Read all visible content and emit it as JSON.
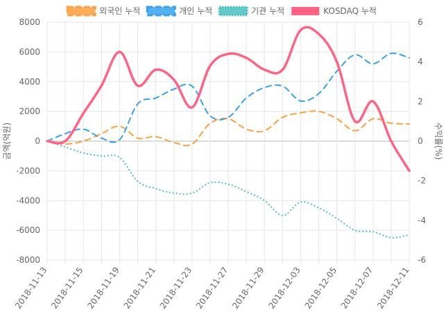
{
  "chart_data": {
    "type": "line",
    "categories": [
      "2018-11-13",
      "2018-11-14",
      "2018-11-15",
      "2018-11-16",
      "2018-11-19",
      "2018-11-20",
      "2018-11-21",
      "2018-11-22",
      "2018-11-23",
      "2018-11-26",
      "2018-11-27",
      "2018-11-28",
      "2018-11-29",
      "2018-11-30",
      "2018-12-03",
      "2018-12-04",
      "2018-12-05",
      "2018-12-06",
      "2018-12-07",
      "2018-12-10",
      "2018-12-11"
    ],
    "x_tick_labels": [
      "2018-11-13",
      "2018-11-15",
      "2018-11-19",
      "2018-11-21",
      "2018-11-23",
      "2018-11-27",
      "2018-11-29",
      "2018-12-03",
      "2018-12-05",
      "2018-12-07",
      "2018-12-11"
    ],
    "series": [
      {
        "name": "외국인 누적",
        "axis": "left",
        "color": "#ff9f40",
        "style": "dashed",
        "values": [
          0,
          -200,
          0,
          500,
          1000,
          200,
          300,
          -100,
          -200,
          1200,
          1500,
          800,
          700,
          1600,
          1900,
          2000,
          1500,
          700,
          1500,
          1200,
          1150
        ]
      },
      {
        "name": "개인 누적",
        "axis": "left",
        "color": "#36a2eb",
        "style": "dashed",
        "values": [
          0,
          500,
          800,
          200,
          100,
          2500,
          2900,
          3500,
          3700,
          1700,
          1600,
          2900,
          3600,
          3700,
          2700,
          3200,
          4700,
          5800,
          5200,
          5900,
          5600
        ]
      },
      {
        "name": "기관 누적",
        "axis": "left",
        "color": "#4bc0c0",
        "style": "dotted",
        "values": [
          0,
          -400,
          -800,
          -1000,
          -1100,
          -2700,
          -3200,
          -3500,
          -3500,
          -2800,
          -2900,
          -3400,
          -4000,
          -5000,
          -4100,
          -4500,
          -5200,
          -6000,
          -6100,
          -6500,
          -6300
        ]
      },
      {
        "name": "KOSDAQ 누적",
        "axis": "right",
        "color": "#ff6384",
        "style": "solid",
        "values": [
          0,
          0,
          1.4,
          2.8,
          4.5,
          2.8,
          3.6,
          3.1,
          1.7,
          3.8,
          4.4,
          4.2,
          3.6,
          3.6,
          5.6,
          5.4,
          4.0,
          1.0,
          2.0,
          0,
          -1.5
        ]
      }
    ],
    "y_left": {
      "label": "금액(억원)",
      "min": -8000,
      "max": 8000,
      "step": 2000
    },
    "y_right": {
      "label": "수익률(%)",
      "min": -6,
      "max": 6,
      "step": 2
    },
    "grid": true,
    "legend_position": "top"
  }
}
